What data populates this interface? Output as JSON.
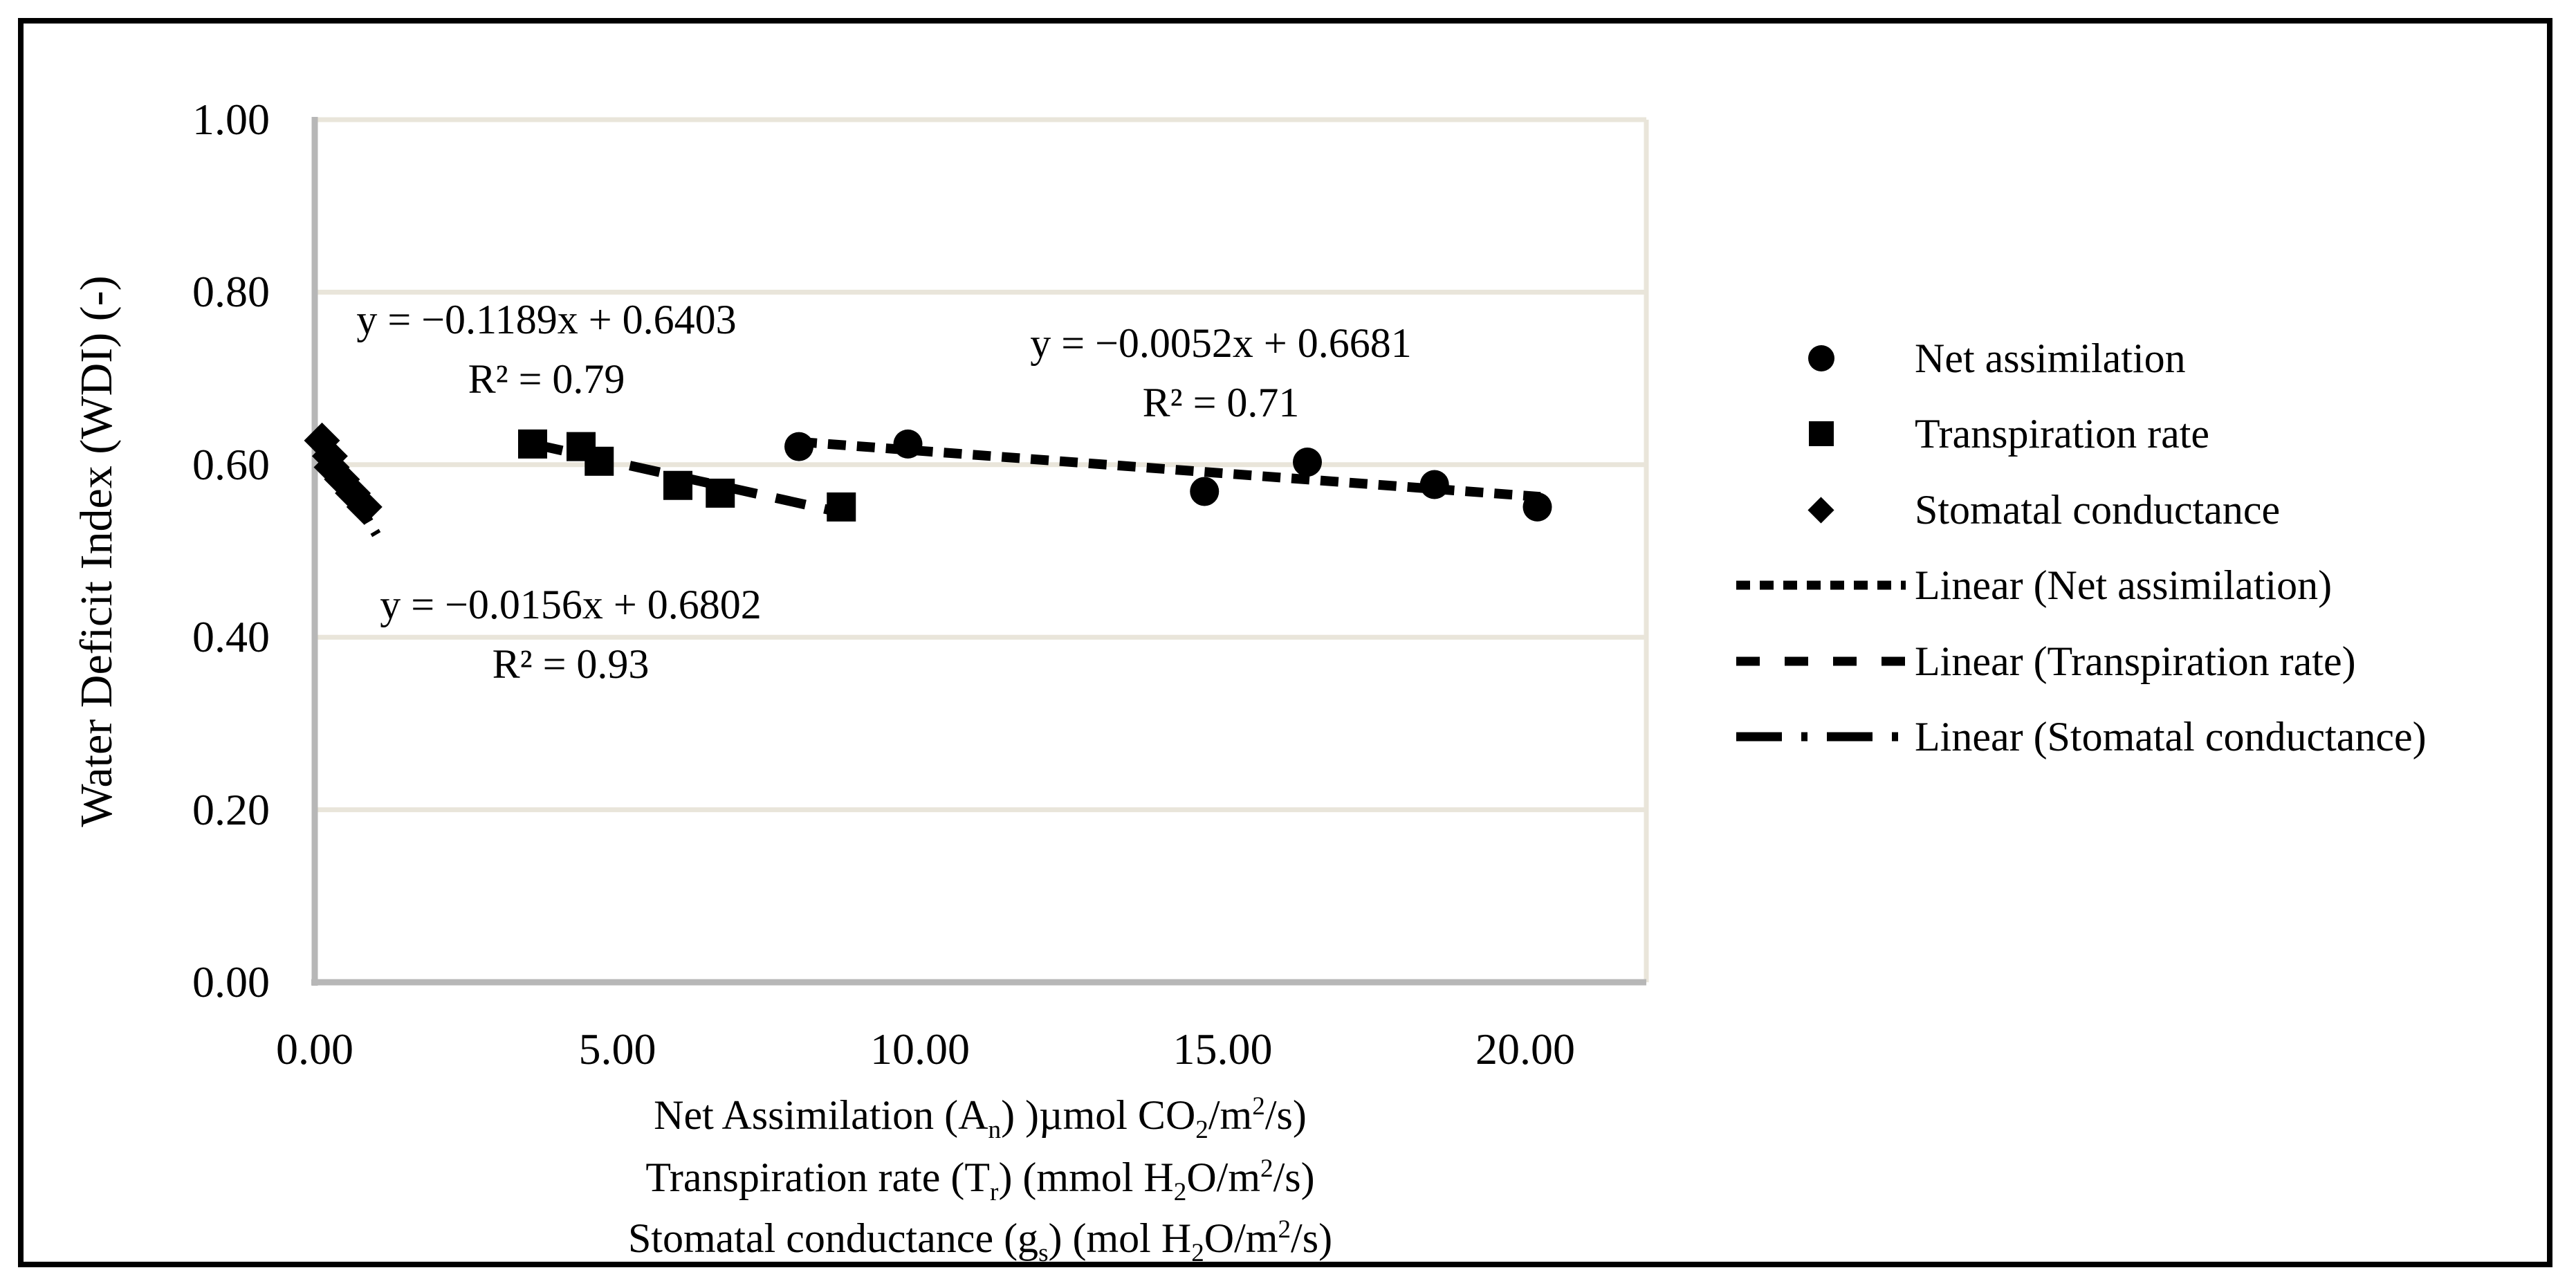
{
  "figure": {
    "y_axis": {
      "title": "Water Deficit Index (WDI) (-)",
      "ticks": [
        "1.00",
        "0.80",
        "0.60",
        "0.40",
        "0.20",
        "0.00"
      ]
    },
    "x_axis": {
      "ticks": [
        "0.00",
        "5.00",
        "10.00",
        "15.00",
        "20.00"
      ],
      "title_lines_html": [
        "Net Assimilation (A<sub>n</sub>) )µmol CO<sub>2</sub>/m<sup>2</sup>/s)",
        "Transpiration rate (T<sub>r</sub>) (mmol H<sub>2</sub>O/m<sup>2</sup>/s)",
        "Stomatal conductance (g<sub>s</sub>) (mol H<sub>2</sub>O/m<sup>2</sup>/s)"
      ]
    },
    "annotations": [
      {
        "series": "Stomatal conductance",
        "line1_html": "y = −0.1189x + 0.6403",
        "line2_html": "R² = 0.79"
      },
      {
        "series": "Net assimilation",
        "line1_html": "y = −0.0052x + 0.6681",
        "line2_html": "R² = 0.71"
      },
      {
        "series": "Transpiration rate",
        "line1_html": "y = −0.0156x + 0.6802",
        "line2_html": "R² = 0.93"
      }
    ],
    "legend": [
      {
        "label": "Net assimilation",
        "marker": "circle"
      },
      {
        "label": "Transpiration rate",
        "marker": "square"
      },
      {
        "label": "Stomatal conductance",
        "marker": "diamond"
      },
      {
        "label": "Linear (Net assimilation)",
        "marker": "line-dot"
      },
      {
        "label": "Linear (Transpiration rate)",
        "marker": "line-dash"
      },
      {
        "label": "Linear (Stomatal conductance)",
        "marker": "line-dashdot"
      }
    ]
  },
  "chart_data": {
    "type": "scatter",
    "title": "",
    "ylabel": "Water Deficit Index (WDI) (-)",
    "xlabel_lines": [
      "Net Assimilation (An) )µmol CO2/m²/s)",
      "Transpiration rate (Tr) (mmol H2O/m²/s)",
      "Stomatal conductance (gs) (mol H2O/m²/s)"
    ],
    "x_range": [
      0,
      22
    ],
    "y_range": [
      0,
      1
    ],
    "x_ticks": [
      0,
      5,
      10,
      15,
      20
    ],
    "y_ticks": [
      0,
      0.2,
      0.4,
      0.6,
      0.8,
      1.0
    ],
    "grid": "horizontal",
    "legend_position": "right",
    "colors": {
      "marker": "#000000",
      "gridline": "#e9e5da",
      "axis": "#b7b7b7"
    },
    "series": [
      {
        "name": "Net assimilation",
        "marker": "circle",
        "points": [
          [
            8.0,
            0.621
          ],
          [
            9.8,
            0.624
          ],
          [
            14.7,
            0.569
          ],
          [
            16.4,
            0.603
          ],
          [
            18.5,
            0.577
          ],
          [
            20.2,
            0.551
          ]
        ],
        "trendline": {
          "slope": -0.0052,
          "intercept": 0.6681,
          "r2": 0.71,
          "style": "dot"
        }
      },
      {
        "name": "Transpiration rate",
        "marker": "square",
        "points": [
          [
            3.6,
            0.624
          ],
          [
            4.4,
            0.621
          ],
          [
            4.7,
            0.604
          ],
          [
            6.0,
            0.576
          ],
          [
            6.7,
            0.567
          ],
          [
            8.7,
            0.551
          ]
        ],
        "trendline": {
          "slope": -0.0156,
          "intercept": 0.6802,
          "r2": 0.93,
          "style": "dash"
        }
      },
      {
        "name": "Stomatal conductance",
        "marker": "diamond",
        "points": [
          [
            0.12,
            0.628
          ],
          [
            0.25,
            0.61
          ],
          [
            0.28,
            0.597
          ],
          [
            0.45,
            0.583
          ],
          [
            0.63,
            0.567
          ],
          [
            0.82,
            0.551
          ]
        ],
        "trendline": {
          "slope": -0.1189,
          "intercept": 0.6403,
          "r2": 0.79,
          "style": "dashdot"
        }
      }
    ]
  }
}
